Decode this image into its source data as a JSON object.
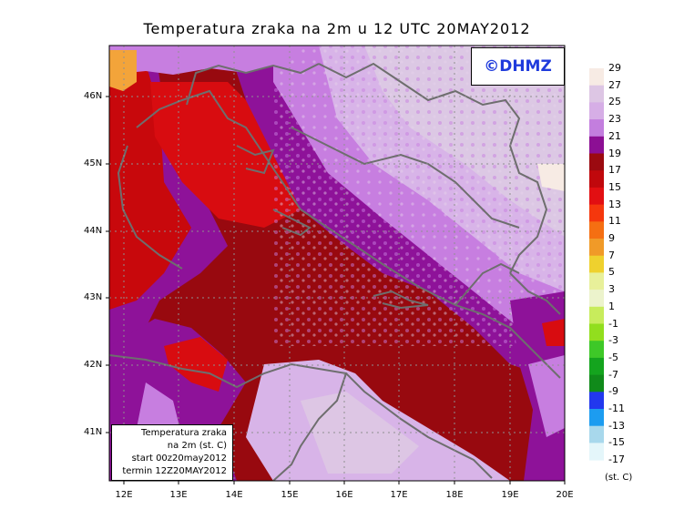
{
  "title": "Temperatura zraka na 2m u 12 UTC 20MAY2012",
  "copyright": "©DHMZ",
  "infobox": {
    "line1": "Temperatura zraka",
    "line2": "na 2m (st. C)",
    "line3": "start 00z20may2012",
    "line4": "termin 12Z20MAY2012"
  },
  "lat_labels": [
    "46N",
    "45N",
    "44N",
    "43N",
    "42N",
    "41N"
  ],
  "lon_labels": [
    "12E",
    "13E",
    "14E",
    "15E",
    "16E",
    "17E",
    "18E",
    "19E",
    "20E"
  ],
  "colorbar": {
    "unit": "(st. C)",
    "labels": [
      "29",
      "27",
      "25",
      "23",
      "21",
      "19",
      "17",
      "15",
      "13",
      "11",
      "9",
      "7",
      "5",
      "3",
      "1",
      "-1",
      "-3",
      "-5",
      "-7",
      "-9",
      "-11",
      "-13",
      "-15",
      "-17"
    ],
    "colors": [
      "#f7ebe4",
      "#ddc6e4",
      "#d6aee6",
      "#c37ede",
      "#8c0f94",
      "#9b0a10",
      "#c0080c",
      "#e20f12",
      "#f5370d",
      "#f56f12",
      "#f09a28",
      "#efd12e",
      "#e8f09a",
      "#ecf3cc",
      "#c8ec5c",
      "#92de1e",
      "#3ec828",
      "#14a41e",
      "#108a1a",
      "#2238ee",
      "#1c9cf0",
      "#a8d8ec",
      "#e4f6fa"
    ]
  },
  "palette": {
    "coast": "#6e6e6e",
    "grid": "#909090",
    "sea": "#98090f",
    "hot_red": "#d80c10",
    "purple": "#8e1299",
    "violet": "#c77ee0",
    "lavender": "#d8b4e8",
    "pale": "#dcc8e4"
  }
}
